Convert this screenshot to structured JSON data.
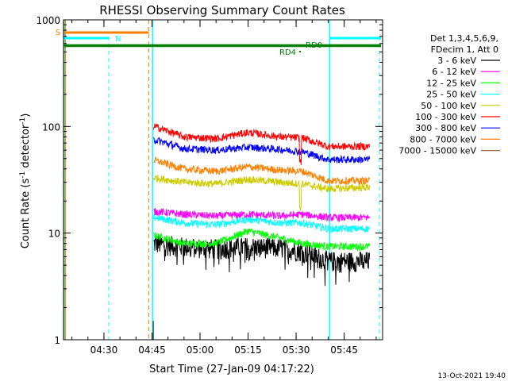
{
  "chart_data": {
    "type": "line",
    "title": "RHESSI Observing Summary Count Rates",
    "xlabel": "Start Time (27-Jan-09 04:17:22)",
    "ylabel_main": "Count Rate (s",
    "ylabel_sup1": "-1",
    "ylabel_mid": " detector",
    "ylabel_sup2": "-1",
    "ylabel_end": ")",
    "x_range_min": [
      17.37,
      81.5
    ],
    "y_scale": "log",
    "ylim": [
      1,
      1000
    ],
    "x_ticks": [
      {
        "t": 30,
        "label": "04:30"
      },
      {
        "t": 45,
        "label": "04:45"
      },
      {
        "t": 60,
        "label": "05:00"
      },
      {
        "t": 75,
        "label": "05:15"
      },
      {
        "t": 90,
        "label": "05:30"
      },
      {
        "t": 105,
        "label": "05:45"
      }
    ],
    "y_ticks": [
      {
        "v": 1,
        "label": "1"
      },
      {
        "v": 10,
        "label": "10"
      },
      {
        "v": 100,
        "label": "100"
      },
      {
        "v": 1000,
        "label": "1000"
      }
    ],
    "legend_header": [
      "Det 1,3,4,5,6,9,",
      "FDecim 1, Att 0"
    ],
    "series": [
      {
        "name": "3 - 6 keV",
        "color": "#000000",
        "start": 45.5,
        "end": 113,
        "points": [
          [
            46,
            8
          ],
          [
            55,
            7.5
          ],
          [
            65,
            7.2
          ],
          [
            75,
            7.5
          ],
          [
            85,
            7.3
          ],
          [
            92,
            6.8
          ],
          [
            100,
            5.5
          ],
          [
            113,
            5.5
          ]
        ]
      },
      {
        "name": "6 - 12 keV",
        "color": "#ff00ff",
        "start": 45.5,
        "end": 113,
        "points": [
          [
            46,
            16
          ],
          [
            55,
            15
          ],
          [
            65,
            14.5
          ],
          [
            75,
            15
          ],
          [
            85,
            14.5
          ],
          [
            92,
            15
          ],
          [
            100,
            14
          ],
          [
            113,
            14
          ]
        ]
      },
      {
        "name": "12 - 25 keV",
        "color": "#00ff00",
        "start": 45.5,
        "end": 113,
        "points": [
          [
            46,
            9.5
          ],
          [
            55,
            8
          ],
          [
            65,
            8
          ],
          [
            75,
            10.5
          ],
          [
            85,
            9
          ],
          [
            92,
            8
          ],
          [
            100,
            7.5
          ],
          [
            113,
            7.5
          ]
        ]
      },
      {
        "name": "25 - 50 keV",
        "color": "#00ffff",
        "start": 45.5,
        "end": 113,
        "points": [
          [
            46,
            14
          ],
          [
            55,
            12.5
          ],
          [
            65,
            12
          ],
          [
            75,
            13.5
          ],
          [
            85,
            12.5
          ],
          [
            92,
            12.5
          ],
          [
            100,
            11
          ],
          [
            113,
            11
          ]
        ]
      },
      {
        "name": "50 - 100 keV",
        "color": "#cccc00",
        "start": 45.5,
        "end": 113,
        "points": [
          [
            46,
            33
          ],
          [
            55,
            30
          ],
          [
            65,
            29
          ],
          [
            75,
            32
          ],
          [
            85,
            30
          ],
          [
            92,
            29
          ],
          [
            100,
            26
          ],
          [
            113,
            27
          ]
        ]
      },
      {
        "name": "100 - 300 keV",
        "color": "#ff0000",
        "start": 45.5,
        "end": 113,
        "points": [
          [
            46,
            100
          ],
          [
            55,
            80
          ],
          [
            65,
            77
          ],
          [
            75,
            88
          ],
          [
            85,
            80
          ],
          [
            92,
            78
          ],
          [
            100,
            65
          ],
          [
            113,
            65
          ]
        ]
      },
      {
        "name": "300 - 800 keV",
        "color": "#0000ff",
        "start": 45.5,
        "end": 113,
        "points": [
          [
            46,
            75
          ],
          [
            55,
            62
          ],
          [
            65,
            60
          ],
          [
            75,
            64
          ],
          [
            85,
            61
          ],
          [
            92,
            58
          ],
          [
            100,
            49
          ],
          [
            113,
            49
          ]
        ]
      },
      {
        "name": "800 - 7000 keV",
        "color": "#ff8000",
        "start": 45.5,
        "end": 113,
        "points": [
          [
            46,
            48
          ],
          [
            55,
            40
          ],
          [
            65,
            38
          ],
          [
            75,
            42
          ],
          [
            85,
            39
          ],
          [
            92,
            38
          ],
          [
            100,
            31
          ],
          [
            113,
            31
          ]
        ]
      },
      {
        "name": "7000 - 15000 keV",
        "color": "#996633",
        "start": 45.5,
        "end": 113,
        "points": []
      }
    ],
    "saa_label": "S",
    "night_label": "N",
    "flag_labels": [
      "RD0",
      "RD4"
    ],
    "timestamp": "13-Oct-2021 19:40"
  }
}
